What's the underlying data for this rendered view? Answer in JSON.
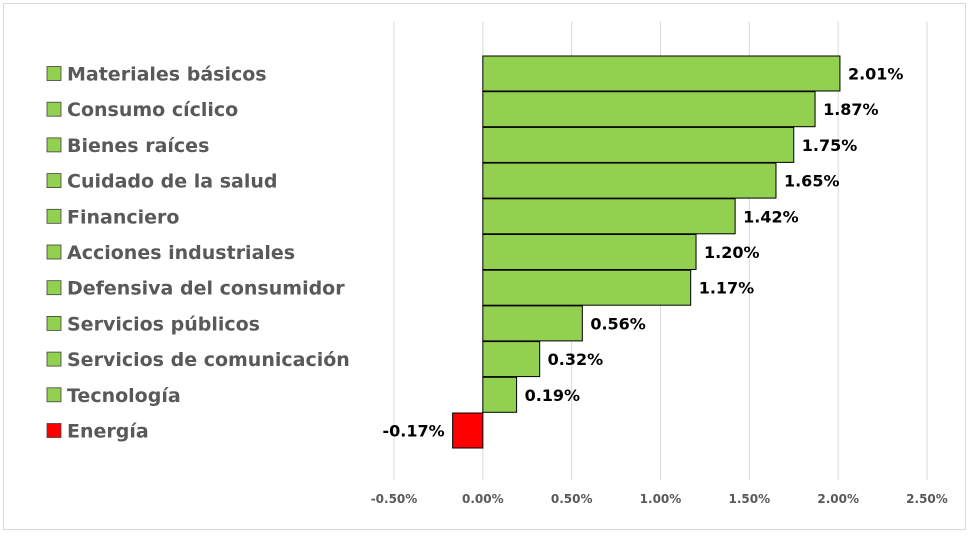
{
  "chart_data": {
    "type": "bar",
    "orientation": "horizontal",
    "categories": [
      "Materiales básicos",
      "Consumo cíclico",
      "Bienes raíces",
      "Cuidado de la salud",
      "Financiero",
      "Acciones industriales",
      "Defensiva del consumidor",
      "Servicios públicos",
      "Servicios de comunicación",
      "Tecnología",
      "Energía"
    ],
    "values": [
      2.01,
      1.87,
      1.75,
      1.65,
      1.42,
      1.2,
      1.17,
      0.56,
      0.32,
      0.19,
      -0.17
    ],
    "value_labels": [
      "2.01%",
      "1.87%",
      "1.75%",
      "1.65%",
      "1.42%",
      "1.20%",
      "1.17%",
      "0.56%",
      "0.32%",
      "0.19%",
      "-0.17%"
    ],
    "x_ticks": [
      -0.5,
      0.0,
      0.5,
      1.0,
      1.5,
      2.0,
      2.5
    ],
    "x_tick_labels": [
      "-0.50%",
      "0.00%",
      "0.50%",
      "1.00%",
      "1.50%",
      "2.00%",
      "2.50%"
    ],
    "xlim": [
      -0.5,
      2.5
    ],
    "grid": "vertical",
    "legend": "left",
    "title": "",
    "xlabel": "",
    "ylabel": "",
    "colors": {
      "positive": "#92d050",
      "negative": "#ff0000",
      "grid": "#d9d9d9",
      "bar_border": "#000000"
    }
  }
}
